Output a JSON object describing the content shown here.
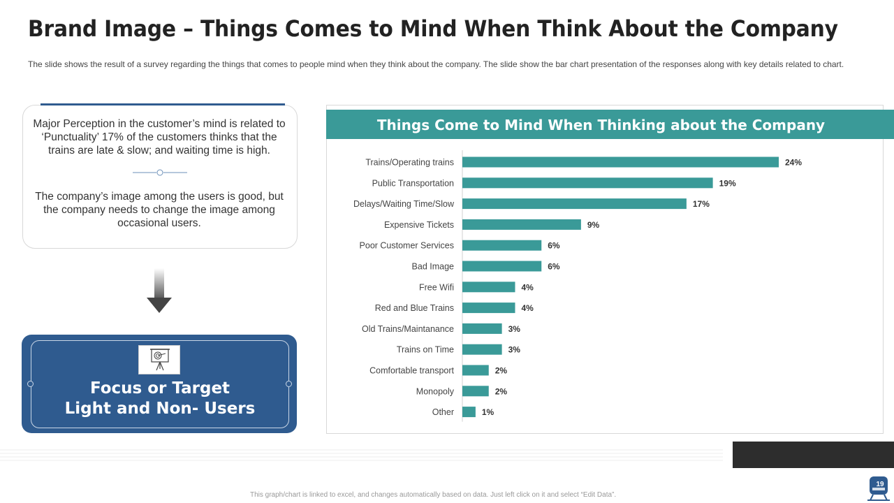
{
  "slide": {
    "title": "Brand Image – Things Comes to Mind When Think About the Company",
    "subtitle": "The slide shows the result of a survey regarding the things that comes to people mind when they think about the company. The slide show the bar chart presentation of the responses along with key details related to chart.",
    "footnote": "This graph/chart is linked to excel, and changes automatically based on data. Just left click on it and select “Edit Data”.",
    "page_number": "19"
  },
  "perception": {
    "text1": "Major Perception in the customer’s mind is related to ‘Punctuality’ 17% of the customers thinks that the trains are late & slow; and waiting time is high.",
    "text2": "The company’s image among the users is good, but the company needs to change the image among occasional users."
  },
  "focus": {
    "line1": "Focus or Target",
    "line2": "Light and Non- Users",
    "icon": "target-presentation-icon"
  },
  "colors": {
    "teal": "#3a9a98",
    "navy": "#2f5b8f",
    "bar": "#3a9a98"
  },
  "chart_data": {
    "type": "bar",
    "orientation": "horizontal",
    "title": "Things Come to Mind When Thinking about the Company",
    "categories": [
      "Trains/Operating trains",
      "Public Transportation",
      "Delays/Waiting Time/Slow",
      "Expensive Tickets",
      "Poor Customer Services",
      "Bad Image",
      "Free Wifi",
      "Red and Blue Trains",
      "Old Trains/Maintanance",
      "Trains on Time",
      "Comfortable transport",
      "Monopoly",
      "Other"
    ],
    "values": [
      24,
      19,
      17,
      9,
      6,
      6,
      4,
      4,
      3,
      3,
      2,
      2,
      1
    ],
    "labels": [
      "24%",
      "19%",
      "17%",
      "9%",
      "6%",
      "6%",
      "4%",
      "4%",
      "3%",
      "3%",
      "2%",
      "2%",
      "1%"
    ],
    "unit": "%",
    "xlim": [
      0,
      24
    ],
    "grid": false,
    "legend": "none"
  }
}
